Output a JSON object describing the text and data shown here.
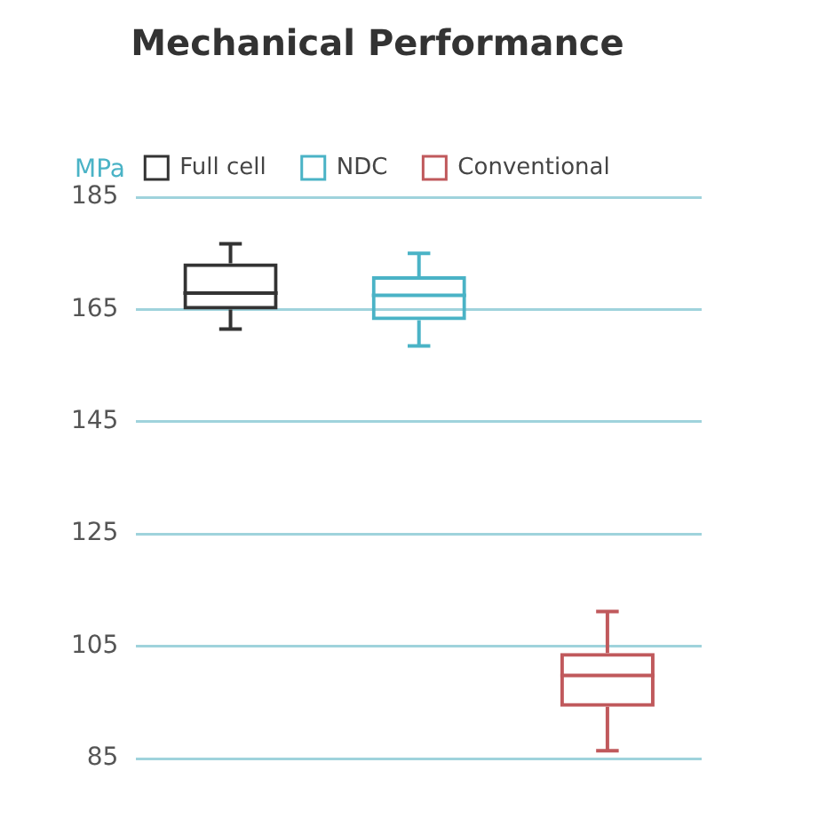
{
  "chart_data": {
    "type": "box",
    "title": "Mechanical Performance",
    "ylabel": "MPa",
    "categories": [
      null,
      null,
      null
    ],
    "series": [
      {
        "name": "Full cell",
        "color": "#333333",
        "boxes": [
          {
            "low": 161.5,
            "q1": 165,
            "median": 167.9,
            "q3": 173.2,
            "high": 176.7
          },
          null,
          null
        ]
      },
      {
        "name": "NDC",
        "color": "#4ab3c6",
        "boxes": [
          null,
          {
            "low": 158.5,
            "q1": 163.1,
            "median": 167.5,
            "q3": 170.9,
            "high": 175
          },
          null
        ]
      },
      {
        "name": "Conventional",
        "color": "#c0595c",
        "boxes": [
          null,
          null,
          {
            "low": 86.4,
            "q1": 94.2,
            "median": 99.8,
            "q3": 103.8,
            "high": 111.2
          }
        ]
      }
    ],
    "ylim": [
      85,
      185
    ],
    "yticks": [
      85,
      105,
      125,
      145,
      165,
      185
    ],
    "grid": "y",
    "legend": "top",
    "tick_labels": "y"
  }
}
